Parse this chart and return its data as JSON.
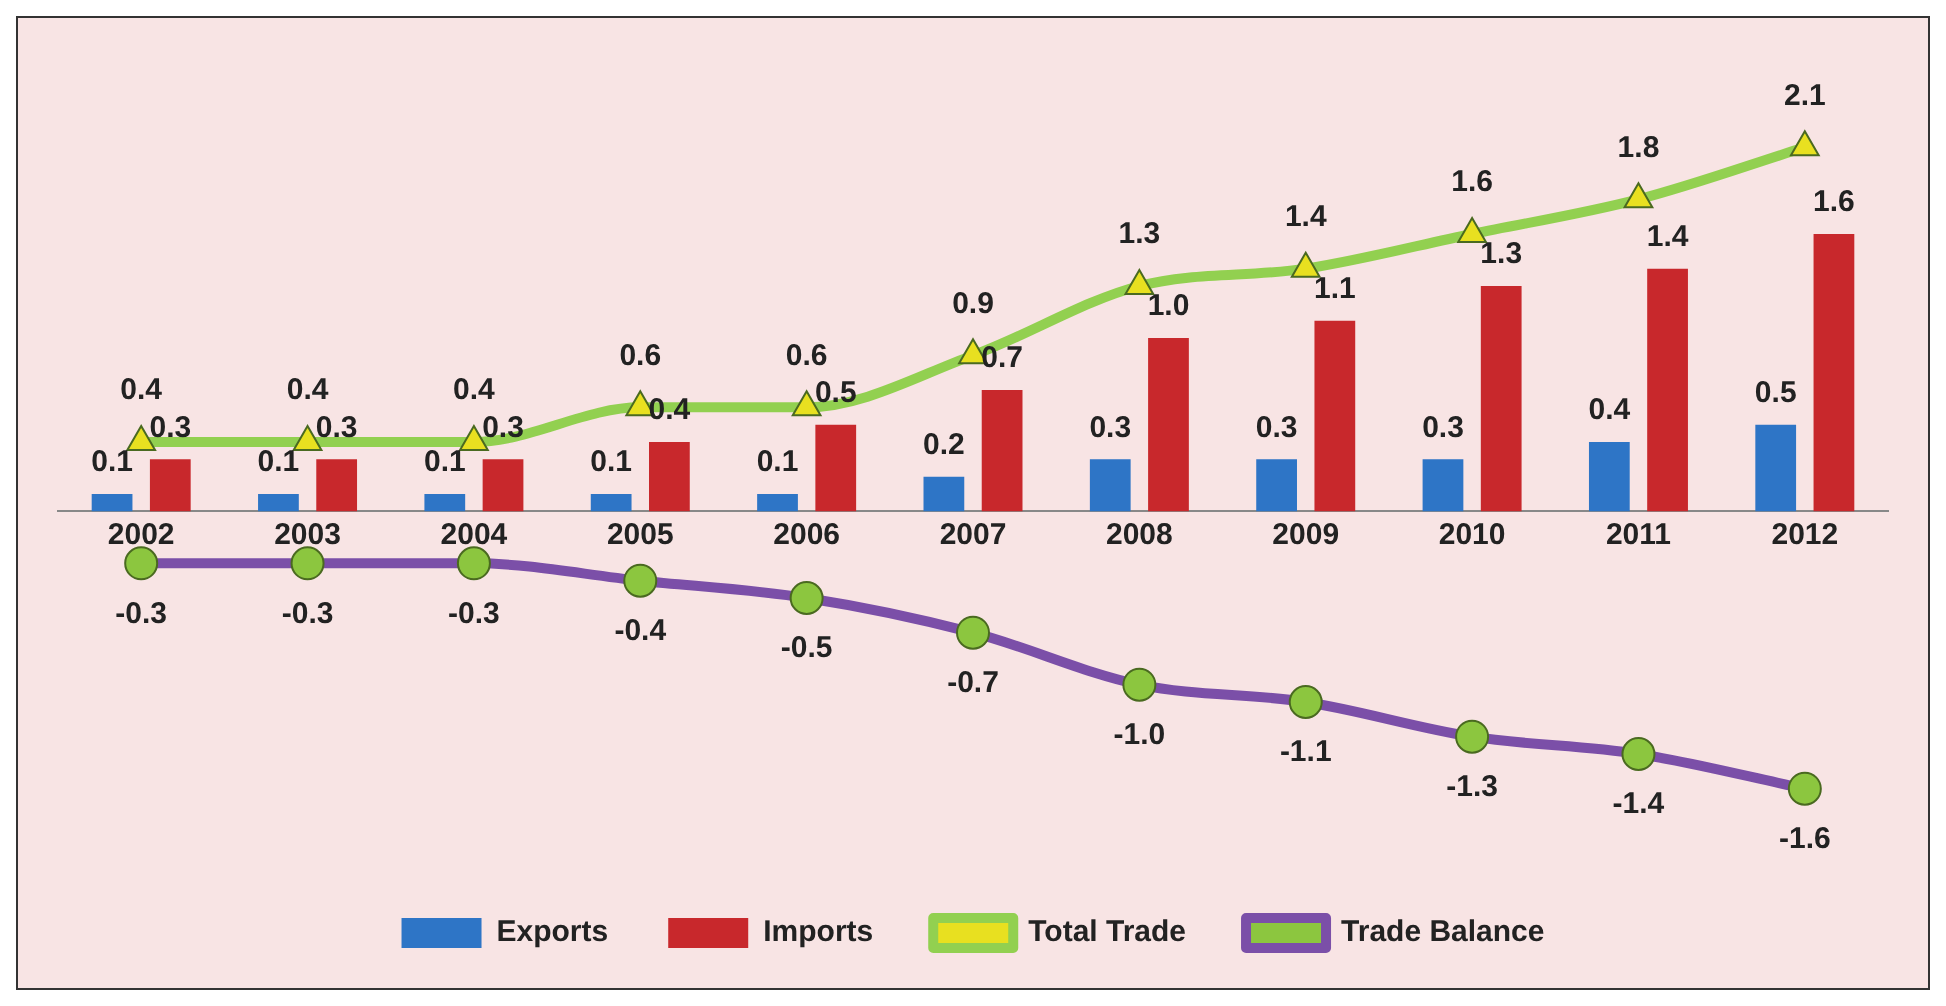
{
  "chart_data": {
    "type": "bar",
    "categories": [
      "2002",
      "2003",
      "2004",
      "2005",
      "2006",
      "2007",
      "2008",
      "2009",
      "2010",
      "2011",
      "2012"
    ],
    "series": [
      {
        "name": "Exports",
        "color": "#2e75c6",
        "values": [
          0.1,
          0.1,
          0.1,
          0.1,
          0.1,
          0.2,
          0.3,
          0.3,
          0.3,
          0.4,
          0.5
        ],
        "value_labels": [
          "0.1",
          "0.1",
          "0.1",
          "0.1",
          "0.1",
          "0.2",
          "0.3",
          "0.3",
          "0.3",
          "0.4",
          "0.5"
        ]
      },
      {
        "name": "Imports",
        "color": "#c8282c",
        "values": [
          0.3,
          0.3,
          0.3,
          0.4,
          0.5,
          0.7,
          1.0,
          1.1,
          1.3,
          1.4,
          1.6
        ],
        "value_labels": [
          "0.3",
          "0.3",
          "0.3",
          "0.4",
          "0.5",
          "0.7",
          "1.0",
          "1.1",
          "1.3",
          "1.4",
          "1.6"
        ]
      },
      {
        "name": "Total Trade",
        "type": "line",
        "color": "#92d050",
        "marker": "triangle",
        "values": [
          0.4,
          0.4,
          0.4,
          0.6,
          0.6,
          0.9,
          1.3,
          1.4,
          1.6,
          1.8,
          2.1
        ],
        "value_labels": [
          "0.4",
          "0.4",
          "0.4",
          "0.6",
          "0.6",
          "0.9",
          "1.3",
          "1.4",
          "1.6",
          "1.8",
          "2.1"
        ]
      },
      {
        "name": "Trade Balance",
        "type": "line",
        "color": "#7b4fa8",
        "marker": "circle",
        "values": [
          -0.3,
          -0.3,
          -0.3,
          -0.4,
          -0.5,
          -0.7,
          -1.0,
          -1.1,
          -1.3,
          -1.4,
          -1.6
        ],
        "value_labels": [
          "-0.3",
          "-0.3",
          "-0.3",
          "-0.4",
          "-0.5",
          "-0.7",
          "-1.0",
          "-1.1",
          "-1.3",
          "-1.4",
          "-1.6"
        ]
      }
    ],
    "legend": "bottom",
    "grid": false
  }
}
